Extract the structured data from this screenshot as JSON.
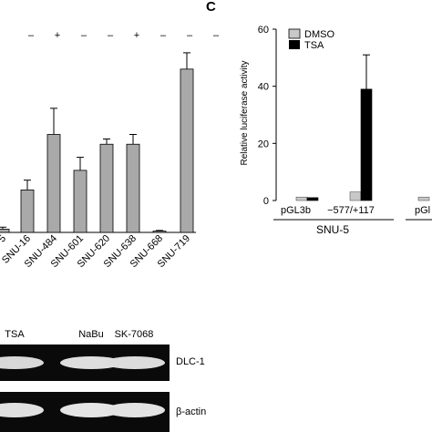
{
  "chart_data": [
    {
      "type": "bar",
      "categories": [
        "5",
        "SNU-16",
        "SNU-484",
        "SNU-601",
        "SNU-620",
        "SNU-638",
        "SNU-668",
        "SNU-719"
      ],
      "treatment_marks": [
        "",
        "–",
        "+",
        "–",
        "–",
        "+",
        "–",
        "–",
        "–"
      ],
      "values": [
        0.5,
        6.5,
        15.0,
        9.5,
        13.5,
        13.5,
        0.2,
        25.0
      ],
      "errors": [
        0.3,
        1.5,
        4.0,
        2.0,
        0.8,
        1.5,
        0.1,
        2.5
      ],
      "ylim": [
        0,
        30
      ],
      "bar_color": "#a9a9a9"
    },
    {
      "type": "bar",
      "panel_label": "C",
      "ylabel": "Relative luciferase activity",
      "ylim": [
        0,
        60
      ],
      "yticks": [
        0,
        20,
        40,
        60
      ],
      "categories": [
        "pGL3b",
        "−577/+117",
        "pGl"
      ],
      "group_label": "SNU-5",
      "series": [
        {
          "name": "DMSO",
          "color": "#c8c8c8",
          "values": [
            1.2,
            3.0,
            1.2
          ],
          "errors": [
            0,
            0,
            0
          ]
        },
        {
          "name": "TSA",
          "color": "#000000",
          "values": [
            1.0,
            39.0,
            null
          ],
          "errors": [
            0,
            12.0,
            0
          ]
        }
      ],
      "legend": "top-left"
    }
  ],
  "gel": {
    "lane_labels": [
      "TSA",
      "NaBu",
      "SK-7068"
    ],
    "row_labels": [
      "DLC-1",
      "β-actin"
    ]
  }
}
